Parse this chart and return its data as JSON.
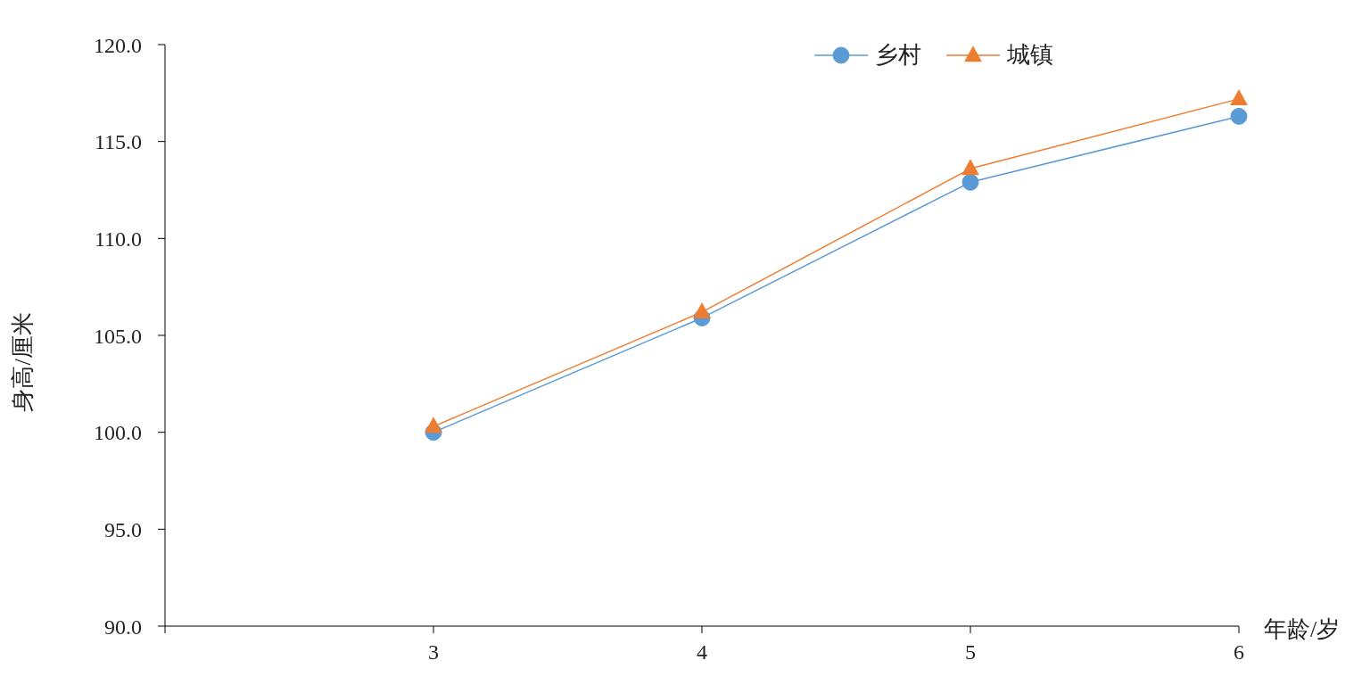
{
  "chart_data": {
    "type": "line",
    "xlabel": "年龄/岁",
    "ylabel": "身高/厘米",
    "categories": [
      null,
      "3",
      "4",
      "5",
      "6"
    ],
    "series": [
      {
        "name": "乡村",
        "color": "#5b9bd5",
        "marker": "circle",
        "values": [
          null,
          100.0,
          105.9,
          112.9,
          116.3
        ]
      },
      {
        "name": "城镇",
        "color": "#ed7d31",
        "marker": "triangle",
        "values": [
          null,
          100.3,
          106.2,
          113.6,
          117.2
        ]
      }
    ],
    "ylim": [
      90,
      120
    ],
    "yticks": [
      {
        "value": 90,
        "label": "90.0"
      },
      {
        "value": 95,
        "label": "95.0"
      },
      {
        "value": 100,
        "label": "100.0"
      },
      {
        "value": 105,
        "label": "105.0"
      },
      {
        "value": 110,
        "label": "110.0"
      },
      {
        "value": 115,
        "label": "115.0"
      },
      {
        "value": 120,
        "label": "120.0"
      }
    ],
    "grid": false,
    "legend": "top right",
    "line_style": "solid"
  }
}
